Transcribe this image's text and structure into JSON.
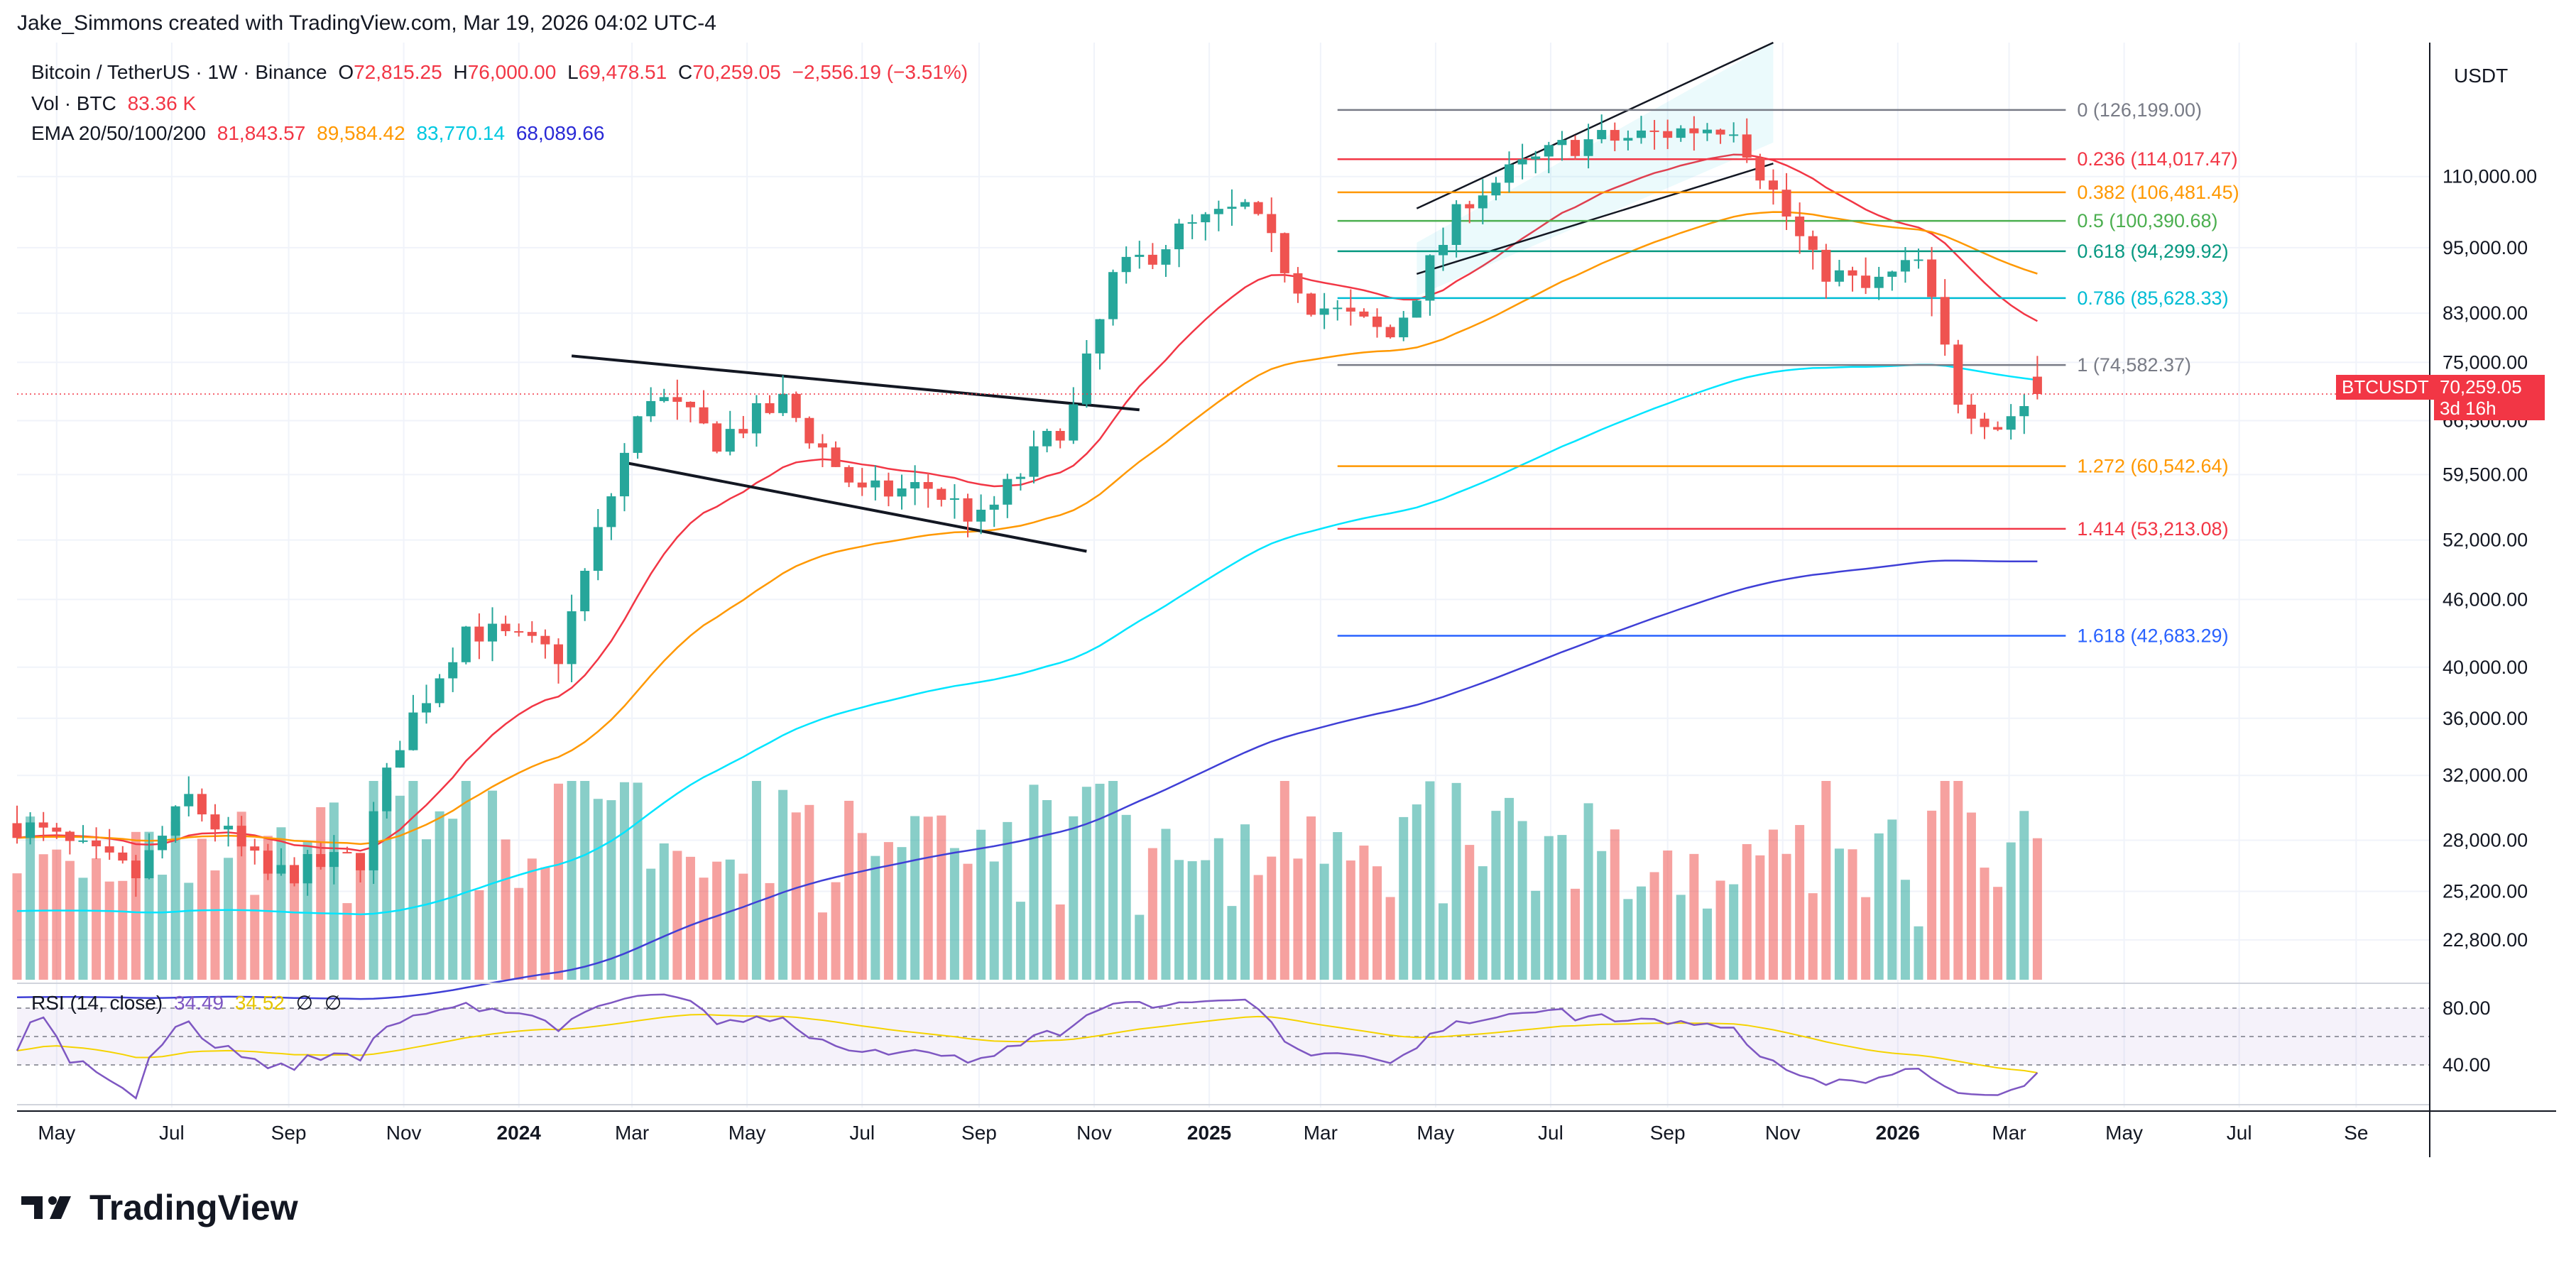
{
  "header": {
    "text": "Jake_Simmons created with TradingView.com, Mar 19, 2026 04:02 UTC-4"
  },
  "legend": {
    "symbol": "Bitcoin / TetherUS · 1W · Binance",
    "o_label": "O",
    "o_value": "72,815.25",
    "h_label": "H",
    "h_value": "76,000.00",
    "l_label": "L",
    "l_value": "69,478.51",
    "c_label": "C",
    "c_value": "70,259.05",
    "change": "−2,556.19 (−3.51%)",
    "vol_label": "Vol · BTC",
    "vol_value": "83.36 K",
    "ema_label": "EMA 20/50/100/200",
    "ema20": "81,843.57",
    "ema50": "89,584.42",
    "ema100": "83,770.14",
    "ema200": "68,089.66"
  },
  "rsi": {
    "label": "RSI (14, close)",
    "value1": "34.49",
    "value2": "34.52",
    "na1": "∅",
    "na2": "∅",
    "level_high": "80.00",
    "level_low": "40.00"
  },
  "price_axis": {
    "currency": "USDT",
    "ticks": [
      "110,000.00",
      "95,000.00",
      "83,000.00",
      "75,000.00",
      "66,500.00",
      "59,500.00",
      "52,000.00",
      "46,000.00",
      "40,000.00",
      "36,000.00",
      "32,000.00",
      "28,000.00",
      "25,200.00",
      "22,800.00"
    ]
  },
  "price_tag": {
    "symbol": "BTCUSDT",
    "price": "70,259.05",
    "countdown": "3d 16h"
  },
  "time_axis": [
    "May",
    "Jul",
    "Sep",
    "Nov",
    "2024",
    "Mar",
    "May",
    "Jul",
    "Sep",
    "Nov",
    "2025",
    "Mar",
    "May",
    "Jul",
    "Sep",
    "Nov",
    "2026",
    "Mar",
    "May",
    "Jul",
    "Se"
  ],
  "fib_levels": [
    {
      "label": "0 (126,199.00)",
      "price": 126199,
      "color": "#787b86"
    },
    {
      "label": "0.236 (114,017.47)",
      "price": 114017.47,
      "color": "#f23645"
    },
    {
      "label": "0.382 (106,481.45)",
      "price": 106481.45,
      "color": "#ff9800"
    },
    {
      "label": "0.5 (100,390.68)",
      "price": 100390.68,
      "color": "#4caf50"
    },
    {
      "label": "0.618 (94,299.92)",
      "price": 94299.92,
      "color": "#089981"
    },
    {
      "label": "0.786 (85,628.33)",
      "price": 85628.33,
      "color": "#00bcd4"
    },
    {
      "label": "1 (74,582.37)",
      "price": 74582.37,
      "color": "#787b86"
    },
    {
      "label": "1.272 (60,542.64)",
      "price": 60542.64,
      "color": "#ff9800"
    },
    {
      "label": "1.414 (53,213.08)",
      "price": 53213.08,
      "color": "#f23645"
    },
    {
      "label": "1.618 (42,683.29)",
      "price": 42683.29,
      "color": "#2962ff"
    }
  ],
  "colors": {
    "up": "#26a69a",
    "down": "#ef5350",
    "ema20": "#f23645",
    "ema50": "#ff9800",
    "ema100": "#00e5ff",
    "ema200": "#3f3fd6",
    "rsi": "#7e57c2",
    "rsi_ma": "#f5d300",
    "grid": "#f0f3fa"
  },
  "footer": {
    "brand": "TradingView"
  },
  "chart_data": {
    "type": "candlestick",
    "title": "Bitcoin / TetherUS · 1W · Binance",
    "ylabel": "USDT",
    "log_scale": true,
    "ylim": [
      21000,
      145000
    ],
    "x_start": "2023-04-10",
    "x_end": "2026-10-10",
    "grid": true,
    "candles": []
  }
}
